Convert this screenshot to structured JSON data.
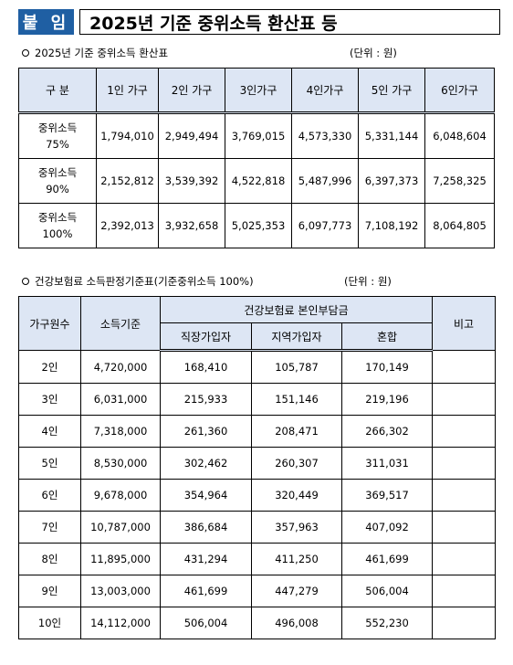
{
  "header": {
    "badge": "붙 임",
    "title": "2025년 기준 중위소득 환산표 등"
  },
  "section1": {
    "title": "2025년 기준 중위소득 환산표",
    "unit": "(단위 : 원)",
    "headers": [
      "구  분",
      "1인 가구",
      "2인 가구",
      "3인가구",
      "4인가구",
      "5인 가구",
      "6인가구"
    ],
    "rows": [
      {
        "label": [
          "중위소득",
          "75%"
        ],
        "values": [
          "1,794,010",
          "2,949,494",
          "3,769,015",
          "4,573,330",
          "5,331,144",
          "6,048,604"
        ]
      },
      {
        "label": [
          "중위소득",
          "90%"
        ],
        "values": [
          "2,152,812",
          "3,539,392",
          "4,522,818",
          "5,487,996",
          "6,397,373",
          "7,258,325"
        ]
      },
      {
        "label": [
          "중위소득",
          "100%"
        ],
        "values": [
          "2,392,013",
          "3,932,658",
          "5,025,353",
          "6,097,773",
          "7,108,192",
          "8,064,805"
        ]
      }
    ]
  },
  "section2": {
    "title": "건강보험료 소득판정기준표(기준중위소득 100%)",
    "unit": "(단위 : 원)",
    "headers": {
      "household": "가구원수",
      "income": "소득기준",
      "group": "건강보험료 본인부담금",
      "employee": "직장가입자",
      "regional": "지역가입자",
      "mixed": "혼합",
      "note": "비고"
    },
    "rows": [
      [
        "2인",
        "4,720,000",
        "168,410",
        "105,787",
        "170,149"
      ],
      [
        "3인",
        "6,031,000",
        "215,933",
        "151,146",
        "219,196"
      ],
      [
        "4인",
        "7,318,000",
        "261,360",
        "208,471",
        "266,302"
      ],
      [
        "5인",
        "8,530,000",
        "302,462",
        "260,307",
        "311,031"
      ],
      [
        "6인",
        "9,678,000",
        "354,964",
        "320,449",
        "369,517"
      ],
      [
        "7인",
        "10,787,000",
        "386,684",
        "357,963",
        "407,092"
      ],
      [
        "8인",
        "11,895,000",
        "431,294",
        "411,250",
        "461,699"
      ],
      [
        "9인",
        "13,003,000",
        "461,699",
        "447,279",
        "506,004"
      ],
      [
        "10인",
        "14,112,000",
        "506,004",
        "496,008",
        "552,230"
      ]
    ]
  }
}
